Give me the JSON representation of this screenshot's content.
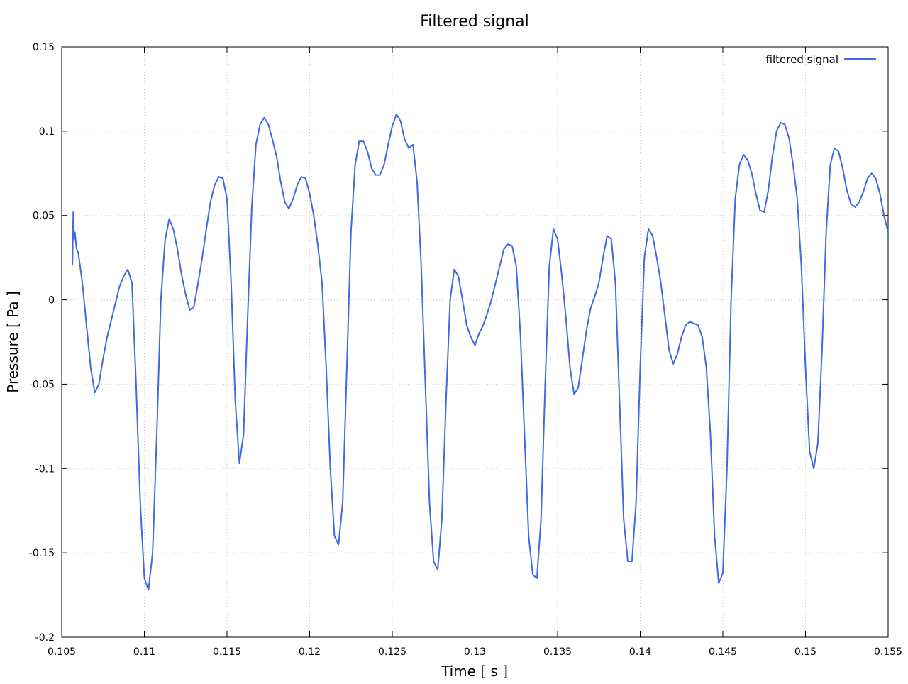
{
  "chart_data": {
    "type": "line",
    "title": "Filtered signal",
    "xlabel": "Time [ s ]",
    "ylabel": "Pressure [ Pa ]",
    "xlim": [
      0.105,
      0.155
    ],
    "ylim": [
      -0.2,
      0.15
    ],
    "x_ticks": [
      0.105,
      0.11,
      0.115,
      0.12,
      0.125,
      0.13,
      0.135,
      0.14,
      0.145,
      0.15,
      0.155
    ],
    "x_tick_labels": [
      "0.105",
      "0.11",
      "0.115",
      "0.12",
      "0.125",
      "0.13",
      "0.135",
      "0.14",
      "0.145",
      "0.15",
      "0.155"
    ],
    "y_ticks": [
      -0.2,
      -0.15,
      -0.1,
      -0.05,
      0,
      0.05,
      0.1,
      0.15
    ],
    "y_tick_labels": [
      "-0.2",
      "-0.15",
      "-0.1",
      "-0.05",
      "0",
      "0.05",
      "0.1",
      "0.15"
    ],
    "grid": true,
    "legend": {
      "position": "top-right"
    },
    "series": [
      {
        "name": "filtered signal",
        "color": "#4169e1",
        "points": [
          [
            0.10565,
            0.021
          ],
          [
            0.1057,
            0.052
          ],
          [
            0.10575,
            0.036
          ],
          [
            0.1058,
            0.04
          ],
          [
            0.1059,
            0.03
          ],
          [
            0.106,
            0.028
          ],
          [
            0.10625,
            0.01
          ],
          [
            0.1065,
            -0.015
          ],
          [
            0.10675,
            -0.04
          ],
          [
            0.107,
            -0.055
          ],
          [
            0.10725,
            -0.05
          ],
          [
            0.1075,
            -0.035
          ],
          [
            0.10775,
            -0.022
          ],
          [
            0.108,
            -0.012
          ],
          [
            0.10825,
            -0.002
          ],
          [
            0.1085,
            0.008
          ],
          [
            0.10875,
            0.014
          ],
          [
            0.109,
            0.018
          ],
          [
            0.10925,
            0.01
          ],
          [
            0.1095,
            -0.05
          ],
          [
            0.10975,
            -0.12
          ],
          [
            0.11,
            -0.165
          ],
          [
            0.11025,
            -0.172
          ],
          [
            0.1105,
            -0.15
          ],
          [
            0.11075,
            -0.08
          ],
          [
            0.111,
            0.0
          ],
          [
            0.11125,
            0.035
          ],
          [
            0.1115,
            0.048
          ],
          [
            0.11175,
            0.042
          ],
          [
            0.112,
            0.03
          ],
          [
            0.11225,
            0.015
          ],
          [
            0.1125,
            0.003
          ],
          [
            0.11275,
            -0.006
          ],
          [
            0.113,
            -0.004
          ],
          [
            0.11325,
            0.01
          ],
          [
            0.1135,
            0.025
          ],
          [
            0.11375,
            0.042
          ],
          [
            0.114,
            0.058
          ],
          [
            0.11425,
            0.068
          ],
          [
            0.1145,
            0.073
          ],
          [
            0.11475,
            0.072
          ],
          [
            0.115,
            0.06
          ],
          [
            0.11525,
            0.01
          ],
          [
            0.1155,
            -0.06
          ],
          [
            0.11575,
            -0.097
          ],
          [
            0.116,
            -0.08
          ],
          [
            0.11625,
            -0.01
          ],
          [
            0.1165,
            0.055
          ],
          [
            0.11675,
            0.092
          ],
          [
            0.117,
            0.104
          ],
          [
            0.11725,
            0.108
          ],
          [
            0.1175,
            0.104
          ],
          [
            0.11775,
            0.095
          ],
          [
            0.118,
            0.085
          ],
          [
            0.11825,
            0.07
          ],
          [
            0.1185,
            0.058
          ],
          [
            0.11875,
            0.054
          ],
          [
            0.119,
            0.06
          ],
          [
            0.11925,
            0.068
          ],
          [
            0.1195,
            0.073
          ],
          [
            0.11975,
            0.072
          ],
          [
            0.12,
            0.063
          ],
          [
            0.12025,
            0.05
          ],
          [
            0.1205,
            0.032
          ],
          [
            0.12075,
            0.01
          ],
          [
            0.121,
            -0.04
          ],
          [
            0.12125,
            -0.1
          ],
          [
            0.1215,
            -0.14
          ],
          [
            0.12175,
            -0.145
          ],
          [
            0.122,
            -0.12
          ],
          [
            0.12225,
            -0.04
          ],
          [
            0.1225,
            0.04
          ],
          [
            0.12275,
            0.08
          ],
          [
            0.123,
            0.094
          ],
          [
            0.12325,
            0.094
          ],
          [
            0.1235,
            0.088
          ],
          [
            0.12375,
            0.078
          ],
          [
            0.124,
            0.074
          ],
          [
            0.12425,
            0.074
          ],
          [
            0.1245,
            0.08
          ],
          [
            0.12475,
            0.092
          ],
          [
            0.125,
            0.103
          ],
          [
            0.12525,
            0.11
          ],
          [
            0.1255,
            0.106
          ],
          [
            0.12575,
            0.095
          ],
          [
            0.126,
            0.09
          ],
          [
            0.12625,
            0.092
          ],
          [
            0.1265,
            0.07
          ],
          [
            0.12675,
            0.02
          ],
          [
            0.127,
            -0.05
          ],
          [
            0.12725,
            -0.12
          ],
          [
            0.1275,
            -0.155
          ],
          [
            0.12775,
            -0.16
          ],
          [
            0.128,
            -0.13
          ],
          [
            0.12825,
            -0.06
          ],
          [
            0.1285,
            0.0
          ],
          [
            0.12875,
            0.018
          ],
          [
            0.129,
            0.014
          ],
          [
            0.12925,
            0.0
          ],
          [
            0.1295,
            -0.015
          ],
          [
            0.12975,
            -0.022
          ],
          [
            0.13,
            -0.027
          ],
          [
            0.13025,
            -0.02
          ],
          [
            0.1305,
            -0.015
          ],
          [
            0.13075,
            -0.008
          ],
          [
            0.131,
            0.0
          ],
          [
            0.13125,
            0.01
          ],
          [
            0.1315,
            0.02
          ],
          [
            0.13175,
            0.03
          ],
          [
            0.132,
            0.033
          ],
          [
            0.13225,
            0.032
          ],
          [
            0.1325,
            0.02
          ],
          [
            0.13275,
            -0.02
          ],
          [
            0.133,
            -0.08
          ],
          [
            0.13325,
            -0.14
          ],
          [
            0.1335,
            -0.163
          ],
          [
            0.13375,
            -0.165
          ],
          [
            0.134,
            -0.13
          ],
          [
            0.13425,
            -0.05
          ],
          [
            0.1345,
            0.02
          ],
          [
            0.13475,
            0.042
          ],
          [
            0.135,
            0.036
          ],
          [
            0.13525,
            0.015
          ],
          [
            0.1355,
            -0.01
          ],
          [
            0.13575,
            -0.04
          ],
          [
            0.136,
            -0.056
          ],
          [
            0.13625,
            -0.052
          ],
          [
            0.1365,
            -0.035
          ],
          [
            0.13675,
            -0.018
          ],
          [
            0.137,
            -0.005
          ],
          [
            0.13725,
            0.002
          ],
          [
            0.1375,
            0.01
          ],
          [
            0.13775,
            0.025
          ],
          [
            0.138,
            0.038
          ],
          [
            0.13825,
            0.036
          ],
          [
            0.1385,
            0.01
          ],
          [
            0.13875,
            -0.06
          ],
          [
            0.139,
            -0.13
          ],
          [
            0.13925,
            -0.155
          ],
          [
            0.1395,
            -0.155
          ],
          [
            0.13975,
            -0.12
          ],
          [
            0.14,
            -0.04
          ],
          [
            0.14025,
            0.025
          ],
          [
            0.1405,
            0.042
          ],
          [
            0.14075,
            0.038
          ],
          [
            0.141,
            0.025
          ],
          [
            0.14125,
            0.01
          ],
          [
            0.1415,
            -0.01
          ],
          [
            0.14175,
            -0.03
          ],
          [
            0.142,
            -0.038
          ],
          [
            0.14225,
            -0.032
          ],
          [
            0.1425,
            -0.022
          ],
          [
            0.14275,
            -0.015
          ],
          [
            0.143,
            -0.013
          ],
          [
            0.14325,
            -0.014
          ],
          [
            0.1435,
            -0.015
          ],
          [
            0.14375,
            -0.022
          ],
          [
            0.144,
            -0.04
          ],
          [
            0.14425,
            -0.08
          ],
          [
            0.1445,
            -0.14
          ],
          [
            0.14475,
            -0.168
          ],
          [
            0.145,
            -0.162
          ],
          [
            0.14525,
            -0.1
          ],
          [
            0.1455,
            0.0
          ],
          [
            0.14575,
            0.06
          ],
          [
            0.146,
            0.08
          ],
          [
            0.14625,
            0.086
          ],
          [
            0.1465,
            0.083
          ],
          [
            0.14675,
            0.075
          ],
          [
            0.147,
            0.063
          ],
          [
            0.14725,
            0.053
          ],
          [
            0.1475,
            0.052
          ],
          [
            0.14775,
            0.065
          ],
          [
            0.148,
            0.085
          ],
          [
            0.14825,
            0.1
          ],
          [
            0.1485,
            0.105
          ],
          [
            0.14875,
            0.104
          ],
          [
            0.149,
            0.096
          ],
          [
            0.14925,
            0.08
          ],
          [
            0.1495,
            0.06
          ],
          [
            0.14975,
            0.02
          ],
          [
            0.15,
            -0.04
          ],
          [
            0.15025,
            -0.09
          ],
          [
            0.1505,
            -0.1
          ],
          [
            0.15075,
            -0.085
          ],
          [
            0.151,
            -0.03
          ],
          [
            0.15125,
            0.04
          ],
          [
            0.1515,
            0.08
          ],
          [
            0.15175,
            0.09
          ],
          [
            0.152,
            0.088
          ],
          [
            0.15225,
            0.078
          ],
          [
            0.1525,
            0.065
          ],
          [
            0.15275,
            0.057
          ],
          [
            0.153,
            0.055
          ],
          [
            0.15325,
            0.058
          ],
          [
            0.1535,
            0.064
          ],
          [
            0.15375,
            0.072
          ],
          [
            0.154,
            0.075
          ],
          [
            0.15425,
            0.072
          ],
          [
            0.1545,
            0.063
          ],
          [
            0.15475,
            0.05
          ],
          [
            0.155,
            0.04
          ]
        ]
      }
    ]
  }
}
